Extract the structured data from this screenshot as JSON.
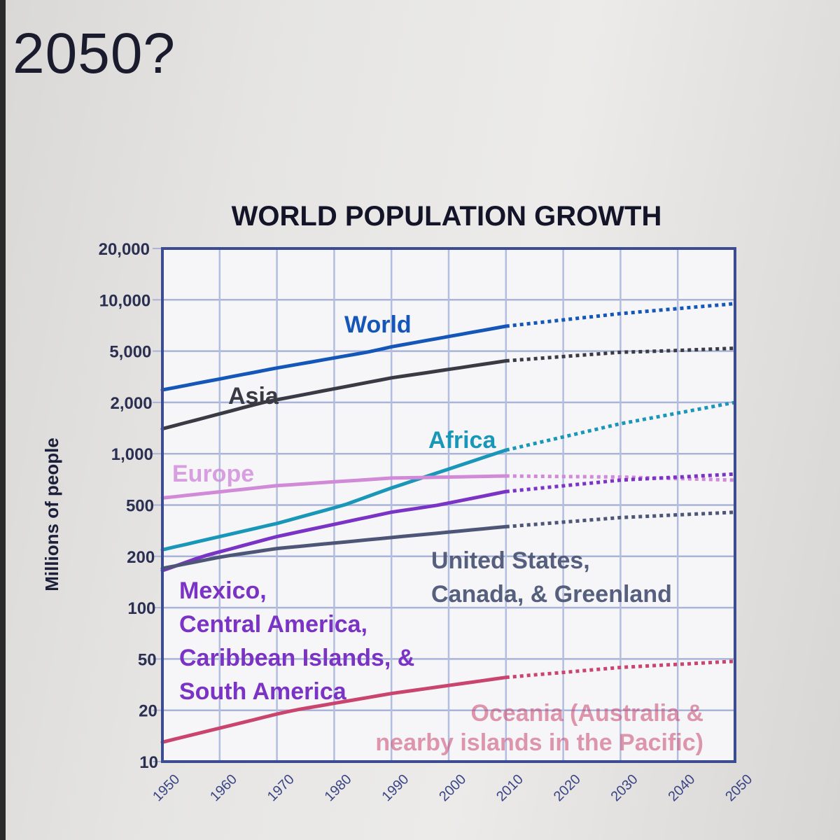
{
  "question": {
    "text": "2050?"
  },
  "chart_data": {
    "type": "line",
    "title": "WORLD POPULATION GROWTH",
    "xlabel": "",
    "ylabel": "Millions of people",
    "y_scale": "log",
    "ylim": [
      10,
      20000
    ],
    "xlim": [
      1950,
      2050
    ],
    "grid": true,
    "y_ticks": [
      20000,
      10000,
      5000,
      2000,
      1000,
      500,
      200,
      100,
      50,
      20,
      10
    ],
    "y_tick_labels": [
      "20,000",
      "10,000",
      "5,000",
      "2,000",
      "1,000",
      "500",
      "200",
      "100",
      "50",
      "20",
      "10"
    ],
    "x_ticks": [
      1950,
      1960,
      1970,
      1980,
      1990,
      2000,
      2010,
      2020,
      2030,
      2040,
      2050
    ],
    "x_tick_labels": [
      "1950",
      "1960",
      "1970",
      "1980",
      "1990",
      "2000",
      "2010",
      "2020",
      "2030",
      "2040",
      "2050"
    ],
    "projection_start": 2010,
    "projection_style": "dotted",
    "series": [
      {
        "name": "World",
        "label_lines": [
          "World"
        ],
        "color": "#1457b8",
        "x": [
          1950,
          1970,
          1990,
          2010,
          2030,
          2050
        ],
        "values": [
          2500,
          3700,
          5300,
          7000,
          8300,
          9500
        ]
      },
      {
        "name": "Asia",
        "label_lines": [
          "Asia"
        ],
        "color": "#3a3a44",
        "x": [
          1950,
          1970,
          1990,
          2010,
          2030,
          2050
        ],
        "values": [
          1400,
          2100,
          3100,
          4200,
          4900,
          5200
        ]
      },
      {
        "name": "Africa",
        "label_lines": [
          "Africa"
        ],
        "color": "#1a97b8",
        "x": [
          1950,
          1970,
          1990,
          2010,
          2030,
          2050
        ],
        "values": [
          225,
          360,
          630,
          1050,
          1500,
          2000
        ]
      },
      {
        "name": "Europe",
        "label_lines": [
          "Europe"
        ],
        "color": "#d08ad8",
        "x": [
          1950,
          1970,
          1990,
          2010,
          2030,
          2050
        ],
        "values": [
          550,
          650,
          720,
          740,
          730,
          700
        ]
      },
      {
        "name": "Mexico, Central America, Caribbean Islands, & South America",
        "label_lines": [
          "Mexico,",
          "Central America,",
          "Caribbean Islands, &",
          "South America"
        ],
        "color": "#7a33c4",
        "x": [
          1950,
          1970,
          1990,
          2010,
          2030,
          2050
        ],
        "values": [
          165,
          285,
          440,
          600,
          700,
          760
        ]
      },
      {
        "name": "United States, Canada, & Greenland",
        "label_lines": [
          "United States,",
          "Canada, & Greenland"
        ],
        "color": "#4d5677",
        "x": [
          1950,
          1970,
          1990,
          2010,
          2030,
          2050
        ],
        "values": [
          170,
          230,
          280,
          340,
          400,
          440
        ]
      },
      {
        "name": "Oceania (Australia & nearby islands in the Pacific)",
        "label_lines": [
          "Oceania (Australia &",
          "nearby islands in the Pacific)"
        ],
        "color": "#c9456e",
        "x": [
          1950,
          1970,
          1990,
          2010,
          2030,
          2050
        ],
        "values": [
          13,
          19,
          27,
          36,
          43,
          48
        ]
      }
    ]
  }
}
